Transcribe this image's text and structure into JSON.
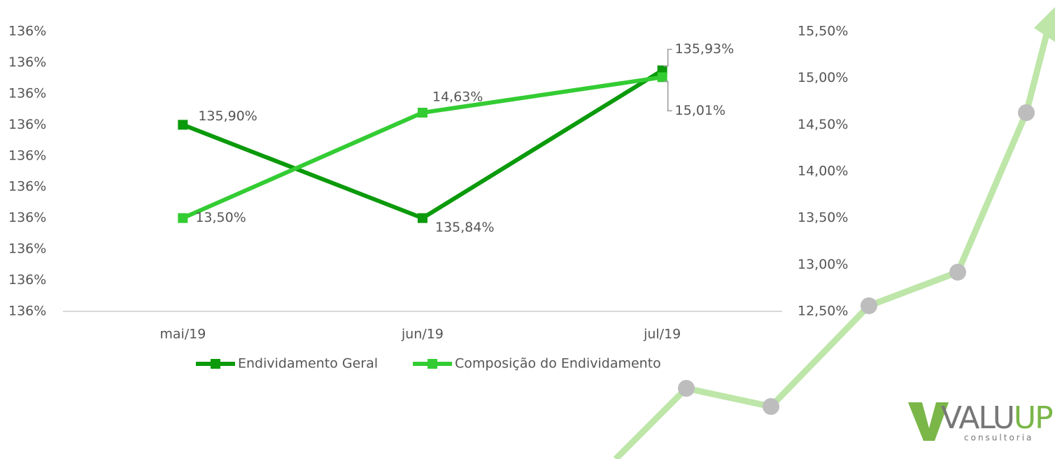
{
  "chart_data": {
    "type": "line",
    "categories": [
      "mai/19",
      "jun/19",
      "jul/19"
    ],
    "series": [
      {
        "name": "Endividamento Geral",
        "color": "#0b9a0b",
        "values": [
          135.9,
          135.84,
          135.935
        ],
        "value_labels": [
          "135,90%",
          "135,84%",
          "135,93%"
        ]
      },
      {
        "name": "Composição do Endividamento",
        "color": "#33cc33",
        "axis": "y2",
        "values": [
          13.5,
          14.63,
          15.01
        ],
        "value_labels": [
          "13,50%",
          "14,63%",
          "15,01%"
        ]
      }
    ],
    "ylim": [
      135.78,
      135.96
    ],
    "yticks": [
      {
        "value": 135.78,
        "label": "136%"
      },
      {
        "value": 135.8,
        "label": "136%"
      },
      {
        "value": 135.82,
        "label": "136%"
      },
      {
        "value": 135.84,
        "label": "136%"
      },
      {
        "value": 135.86,
        "label": "136%"
      },
      {
        "value": 135.88,
        "label": "136%"
      },
      {
        "value": 135.9,
        "label": "136%"
      },
      {
        "value": 135.92,
        "label": "136%"
      },
      {
        "value": 135.94,
        "label": "136%"
      },
      {
        "value": 135.96,
        "label": "136%"
      }
    ],
    "y2lim": [
      12.5,
      15.5
    ],
    "y2ticks": [
      {
        "value": 12.5,
        "label": "12,50%"
      },
      {
        "value": 13.0,
        "label": "13,00%"
      },
      {
        "value": 13.5,
        "label": "13,50%"
      },
      {
        "value": 14.0,
        "label": "14,00%"
      },
      {
        "value": 14.5,
        "label": "14,50%"
      },
      {
        "value": 15.0,
        "label": "15,00%"
      },
      {
        "value": 15.5,
        "label": "15,50%"
      }
    ],
    "grid": false,
    "legend": "bottom"
  },
  "logo": {
    "parts": [
      "VALU",
      "UP"
    ],
    "tagline": "consultoria"
  }
}
